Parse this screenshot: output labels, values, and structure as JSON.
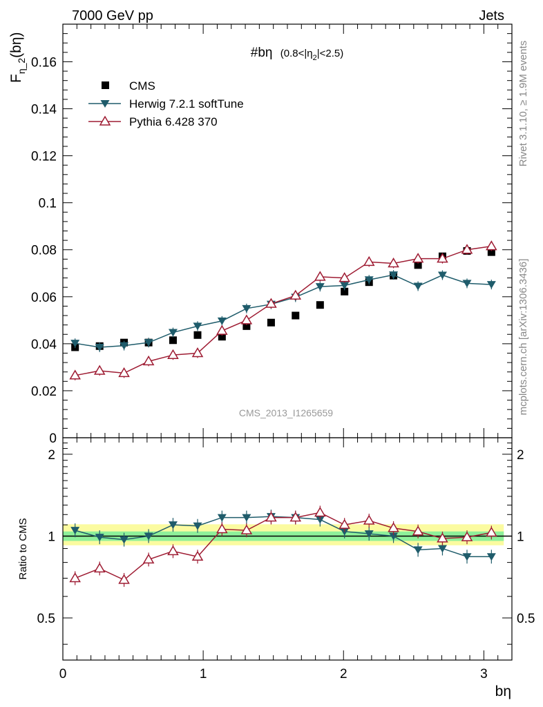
{
  "header": {
    "left": "7000 GeV pp",
    "right": "Jets"
  },
  "side_labels": {
    "rivet": "Rivet 3.1.10, ≥ 1.9M events",
    "mcplots": "mcplots.cern.ch [arXiv:1306.3436]"
  },
  "watermark": "CMS_2013_I1265659",
  "chart_data": {
    "type": "scatter",
    "title": "#bη (0.8<|η₂|<2.5)",
    "title_main": "#bη",
    "title_sub": "(0.8<|η",
    "title_subscript": "2",
    "title_end": "|<2.5)",
    "ylabel_main": "F",
    "ylabel_sub": "η_2",
    "ylabel_end": "(bη)",
    "xlabel": "bη",
    "ratio_ylabel": "Ratio to CMS",
    "xlim": [
      0,
      3.2
    ],
    "ylim": [
      0,
      0.176
    ],
    "ratio_ylim": [
      0.35,
      2.3
    ],
    "x_ticks": [
      0,
      1,
      2,
      3
    ],
    "x_tick_labels": [
      "0",
      "1",
      "2",
      "3"
    ],
    "y_ticks": [
      0,
      0.02,
      0.04,
      0.06,
      0.08,
      0.1,
      0.12,
      0.14,
      0.16
    ],
    "y_tick_labels": [
      "0",
      "0.02",
      "0.04",
      "0.06",
      "0.08",
      "0.1",
      "0.12",
      "0.14",
      "0.16"
    ],
    "ratio_ticks": [
      0.5,
      1,
      2
    ],
    "ratio_tick_labels": [
      "0.5",
      "1",
      "2"
    ],
    "x": [
      0.087,
      0.262,
      0.436,
      0.611,
      0.785,
      0.96,
      1.134,
      1.309,
      1.484,
      1.658,
      1.833,
      2.007,
      2.182,
      2.356,
      2.531,
      2.705,
      2.88,
      3.054
    ],
    "series": [
      {
        "name": "CMS",
        "color": "#000000",
        "marker": "square",
        "values": [
          0.0385,
          0.039,
          0.0405,
          0.0405,
          0.0415,
          0.0437,
          0.043,
          0.0475,
          0.049,
          0.052,
          0.0565,
          0.0622,
          0.0662,
          0.069,
          0.0735,
          0.0772,
          0.0795,
          0.079
        ],
        "ratio": [
          1,
          1,
          1,
          1,
          1,
          1,
          1,
          1,
          1,
          1,
          1,
          1,
          1,
          1,
          1,
          1,
          1,
          1
        ]
      },
      {
        "name": "Herwig 7.2.1 softTune",
        "color": "#1f5c6b",
        "marker": "triangle-down",
        "values": [
          0.0402,
          0.0385,
          0.0392,
          0.0405,
          0.0448,
          0.0475,
          0.0497,
          0.055,
          0.0568,
          0.0598,
          0.0643,
          0.0648,
          0.0672,
          0.0693,
          0.0645,
          0.0692,
          0.0657,
          0.0652
        ],
        "ratio": [
          1.05,
          0.99,
          0.97,
          1.0,
          1.1,
          1.09,
          1.17,
          1.17,
          1.18,
          1.17,
          1.15,
          1.04,
          1.02,
          1.0,
          0.89,
          0.9,
          0.84,
          0.84
        ]
      },
      {
        "name": "Pythia 6.428 370",
        "color": "#9e1b32",
        "marker": "triangle-up-open",
        "values": [
          0.0265,
          0.0285,
          0.0275,
          0.0325,
          0.0352,
          0.036,
          0.0455,
          0.05,
          0.057,
          0.0605,
          0.0685,
          0.068,
          0.0748,
          0.0742,
          0.0762,
          0.0762,
          0.08,
          0.0815
        ],
        "ratio": [
          0.7,
          0.76,
          0.69,
          0.82,
          0.88,
          0.84,
          1.06,
          1.05,
          1.17,
          1.17,
          1.22,
          1.1,
          1.14,
          1.07,
          1.04,
          0.98,
          0.99,
          1.03
        ]
      }
    ],
    "ratio_bands": {
      "inner": 0.04,
      "outer": 0.075
    }
  }
}
